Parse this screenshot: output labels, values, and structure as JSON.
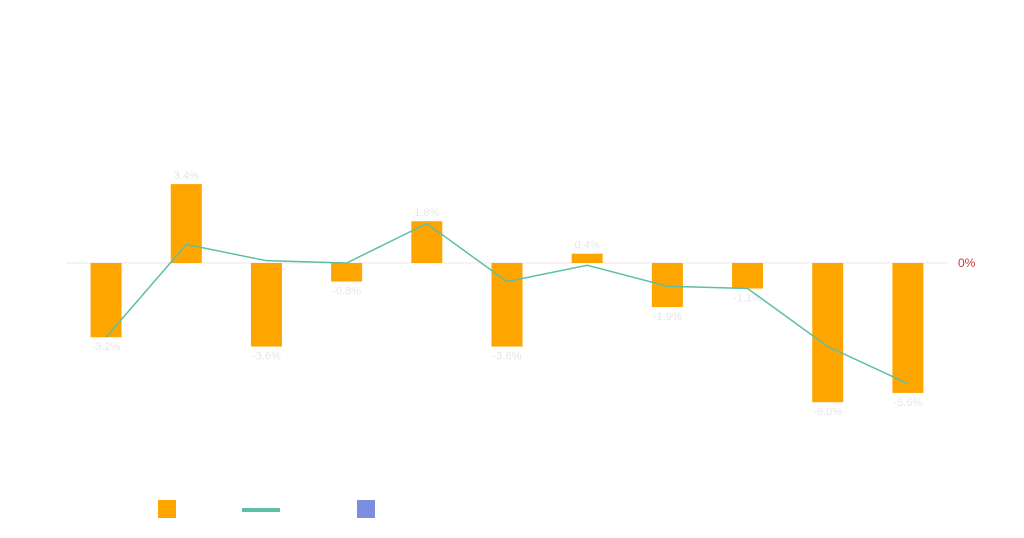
{
  "chart_data": {
    "type": "bar",
    "categories": [
      "",
      "",
      "",
      "",
      "",
      "",
      "",
      "",
      "",
      "",
      ""
    ],
    "series": [
      {
        "type": "bar",
        "values": [
          -3.2,
          3.4,
          -3.6,
          -0.8,
          1.8,
          -3.6,
          0.4,
          -1.9,
          -1.1,
          -6.0,
          -5.6
        ],
        "labels": [
          "-3.2%",
          "3.4%",
          "-3.6%",
          "-0.8%",
          "1.8%",
          "-3.6%",
          "0.4%",
          "-1.9%",
          "-1.1%",
          "-6.0%",
          "-5.6%"
        ]
      },
      {
        "type": "line",
        "values": [
          -3.2,
          0.8,
          0.1,
          0.0,
          1.7,
          -0.8,
          -0.1,
          -1.0,
          -1.1,
          -3.6,
          -5.2
        ]
      }
    ],
    "reference_line": {
      "value": 0,
      "label": "0%"
    },
    "legend": {
      "placement": "bottom-left",
      "entries": [
        "",
        "",
        ""
      ]
    },
    "grid": false
  },
  "colors": {
    "bar": "#ffa500",
    "line": "#5cbfa6",
    "legend_third": "#7b8fde",
    "zero_line": "#f2e6e6",
    "zero_label": "#d0342c",
    "bar_label": "#e6e6e6"
  }
}
